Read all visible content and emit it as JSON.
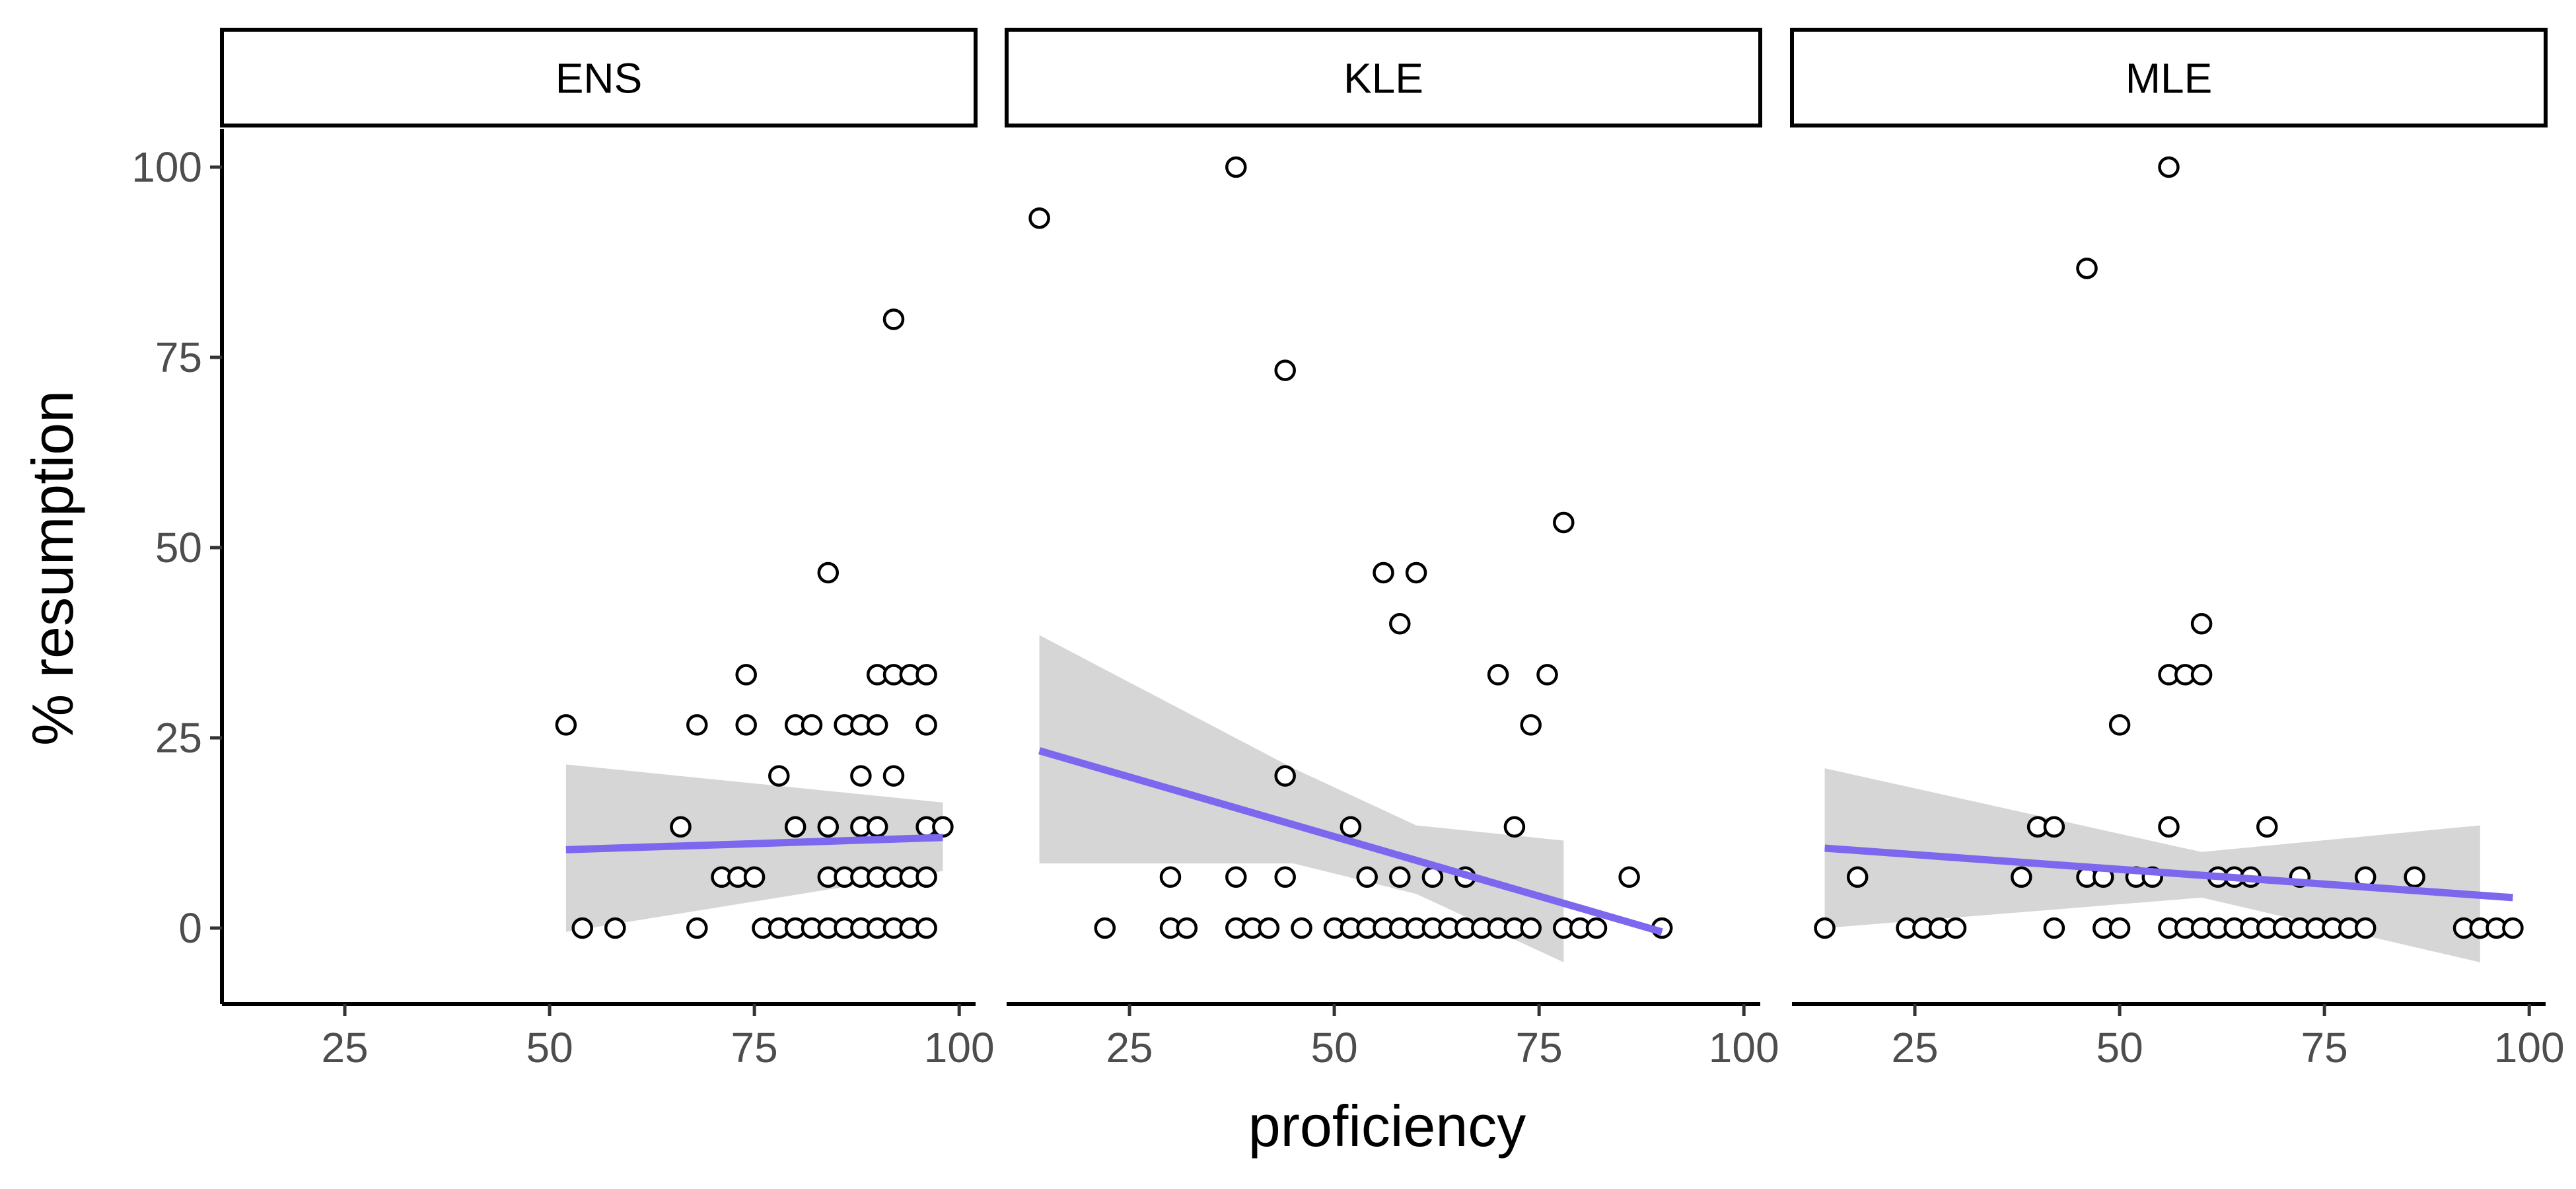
{
  "chart_data": {
    "type": "scatter",
    "xlabel": "proficiency",
    "ylabel": "% resumption",
    "xlim": [
      10,
      102
    ],
    "ylim": [
      -10,
      115
    ],
    "x_ticks": [
      25,
      50,
      75,
      100
    ],
    "y_ticks": [
      0,
      25,
      50,
      75,
      100
    ],
    "grid": false,
    "smoothing": "linear fit with confidence band",
    "fit_color": "#7b68ee",
    "band_color": "#d3d3d3",
    "panels": [
      {
        "name": "ENS",
        "points": [
          {
            "x": 52,
            "y": 26.7
          },
          {
            "x": 54,
            "y": 0
          },
          {
            "x": 58,
            "y": 0
          },
          {
            "x": 66,
            "y": 13.3
          },
          {
            "x": 68,
            "y": 26.7
          },
          {
            "x": 68,
            "y": 0
          },
          {
            "x": 71,
            "y": 6.7
          },
          {
            "x": 73,
            "y": 6.7
          },
          {
            "x": 74,
            "y": 33.3
          },
          {
            "x": 74,
            "y": 26.7
          },
          {
            "x": 75,
            "y": 6.7
          },
          {
            "x": 76,
            "y": 0
          },
          {
            "x": 78,
            "y": 20
          },
          {
            "x": 78,
            "y": 0
          },
          {
            "x": 80,
            "y": 26.7
          },
          {
            "x": 80,
            "y": 13.3
          },
          {
            "x": 80,
            "y": 0
          },
          {
            "x": 82,
            "y": 26.7
          },
          {
            "x": 82,
            "y": 0
          },
          {
            "x": 84,
            "y": 46.7
          },
          {
            "x": 84,
            "y": 13.3
          },
          {
            "x": 84,
            "y": 6.7
          },
          {
            "x": 84,
            "y": 0
          },
          {
            "x": 86,
            "y": 26.7
          },
          {
            "x": 86,
            "y": 6.7
          },
          {
            "x": 86,
            "y": 0
          },
          {
            "x": 88,
            "y": 26.7
          },
          {
            "x": 88,
            "y": 20
          },
          {
            "x": 88,
            "y": 13.3
          },
          {
            "x": 88,
            "y": 6.7
          },
          {
            "x": 88,
            "y": 0
          },
          {
            "x": 90,
            "y": 33.3
          },
          {
            "x": 90,
            "y": 26.7
          },
          {
            "x": 90,
            "y": 13.3
          },
          {
            "x": 90,
            "y": 6.7
          },
          {
            "x": 90,
            "y": 0
          },
          {
            "x": 92,
            "y": 80
          },
          {
            "x": 92,
            "y": 33.3
          },
          {
            "x": 92,
            "y": 20
          },
          {
            "x": 92,
            "y": 6.7
          },
          {
            "x": 92,
            "y": 0
          },
          {
            "x": 94,
            "y": 33.3
          },
          {
            "x": 94,
            "y": 6.7
          },
          {
            "x": 94,
            "y": 0
          },
          {
            "x": 96,
            "y": 33.3
          },
          {
            "x": 96,
            "y": 26.7
          },
          {
            "x": 96,
            "y": 13.3
          },
          {
            "x": 96,
            "y": 6.7
          },
          {
            "x": 96,
            "y": 0
          },
          {
            "x": 98,
            "y": 13.3
          }
        ],
        "fit": {
          "x": [
            52,
            98
          ],
          "y": [
            10.3,
            11.9
          ]
        },
        "band": {
          "x": [
            52,
            98
          ],
          "upper": [
            21.5,
            16.5
          ],
          "lower": [
            -0.5,
            7.5
          ]
        }
      },
      {
        "name": "KLE",
        "points": [
          {
            "x": 14,
            "y": 93.3
          },
          {
            "x": 22,
            "y": 0
          },
          {
            "x": 30,
            "y": 6.7
          },
          {
            "x": 30,
            "y": 0
          },
          {
            "x": 32,
            "y": 0
          },
          {
            "x": 38,
            "y": 100
          },
          {
            "x": 38,
            "y": 6.7
          },
          {
            "x": 38,
            "y": 0
          },
          {
            "x": 40,
            "y": 0
          },
          {
            "x": 42,
            "y": 0
          },
          {
            "x": 44,
            "y": 73.3
          },
          {
            "x": 44,
            "y": 20
          },
          {
            "x": 44,
            "y": 6.7
          },
          {
            "x": 46,
            "y": 0
          },
          {
            "x": 50,
            "y": 0
          },
          {
            "x": 52,
            "y": 13.3
          },
          {
            "x": 52,
            "y": 0
          },
          {
            "x": 54,
            "y": 6.7
          },
          {
            "x": 54,
            "y": 0
          },
          {
            "x": 56,
            "y": 46.7
          },
          {
            "x": 56,
            "y": 0
          },
          {
            "x": 58,
            "y": 40
          },
          {
            "x": 58,
            "y": 6.7
          },
          {
            "x": 58,
            "y": 0
          },
          {
            "x": 60,
            "y": 46.7
          },
          {
            "x": 60,
            "y": 0
          },
          {
            "x": 62,
            "y": 6.7
          },
          {
            "x": 62,
            "y": 0
          },
          {
            "x": 64,
            "y": 0
          },
          {
            "x": 66,
            "y": 6.7
          },
          {
            "x": 66,
            "y": 0
          },
          {
            "x": 68,
            "y": 0
          },
          {
            "x": 70,
            "y": 33.3
          },
          {
            "x": 70,
            "y": 0
          },
          {
            "x": 72,
            "y": 13.3
          },
          {
            "x": 72,
            "y": 0
          },
          {
            "x": 74,
            "y": 26.7
          },
          {
            "x": 74,
            "y": 0
          },
          {
            "x": 76,
            "y": 33.3
          },
          {
            "x": 78,
            "y": 53.3
          },
          {
            "x": 78,
            "y": 0
          },
          {
            "x": 80,
            "y": 0
          },
          {
            "x": 82,
            "y": 0
          },
          {
            "x": 86,
            "y": 6.7
          },
          {
            "x": 90,
            "y": 0
          }
        ],
        "fit": {
          "x": [
            14,
            90
          ],
          "y": [
            23.3,
            -0.5
          ]
        },
        "band": {
          "x": [
            14,
            45,
            60,
            78
          ],
          "upper": [
            38.5,
            21,
            13.5,
            11.5
          ],
          "lower": [
            8.5,
            8.5,
            4.5,
            -4.5
          ]
        }
      },
      {
        "name": "MLE",
        "points": [
          {
            "x": 14,
            "y": 0
          },
          {
            "x": 18,
            "y": 6.7
          },
          {
            "x": 24,
            "y": 0
          },
          {
            "x": 26,
            "y": 0
          },
          {
            "x": 28,
            "y": 0
          },
          {
            "x": 30,
            "y": 0
          },
          {
            "x": 38,
            "y": 6.7
          },
          {
            "x": 40,
            "y": 13.3
          },
          {
            "x": 42,
            "y": 13.3
          },
          {
            "x": 42,
            "y": 0
          },
          {
            "x": 46,
            "y": 86.7
          },
          {
            "x": 46,
            "y": 6.7
          },
          {
            "x": 48,
            "y": 6.7
          },
          {
            "x": 48,
            "y": 0
          },
          {
            "x": 50,
            "y": 26.7
          },
          {
            "x": 50,
            "y": 0
          },
          {
            "x": 52,
            "y": 6.7
          },
          {
            "x": 54,
            "y": 6.7
          },
          {
            "x": 56,
            "y": 100
          },
          {
            "x": 56,
            "y": 33.3
          },
          {
            "x": 56,
            "y": 13.3
          },
          {
            "x": 56,
            "y": 0
          },
          {
            "x": 58,
            "y": 33.3
          },
          {
            "x": 58,
            "y": 0
          },
          {
            "x": 60,
            "y": 40
          },
          {
            "x": 60,
            "y": 33.3
          },
          {
            "x": 60,
            "y": 0
          },
          {
            "x": 62,
            "y": 6.7
          },
          {
            "x": 62,
            "y": 0
          },
          {
            "x": 64,
            "y": 6.7
          },
          {
            "x": 64,
            "y": 0
          },
          {
            "x": 66,
            "y": 6.7
          },
          {
            "x": 66,
            "y": 0
          },
          {
            "x": 68,
            "y": 13.3
          },
          {
            "x": 68,
            "y": 0
          },
          {
            "x": 70,
            "y": 0
          },
          {
            "x": 72,
            "y": 6.7
          },
          {
            "x": 72,
            "y": 0
          },
          {
            "x": 74,
            "y": 0
          },
          {
            "x": 76,
            "y": 0
          },
          {
            "x": 78,
            "y": 0
          },
          {
            "x": 80,
            "y": 6.7
          },
          {
            "x": 80,
            "y": 0
          },
          {
            "x": 86,
            "y": 6.7
          },
          {
            "x": 92,
            "y": 0
          },
          {
            "x": 94,
            "y": 0
          },
          {
            "x": 96,
            "y": 0
          },
          {
            "x": 98,
            "y": 0
          }
        ],
        "fit": {
          "x": [
            14,
            98
          ],
          "y": [
            10.5,
            4.0
          ]
        },
        "band": {
          "x": [
            14,
            60,
            94
          ],
          "upper": [
            21,
            10,
            13.5
          ],
          "lower": [
            0,
            4,
            -4.5
          ]
        }
      }
    ]
  }
}
